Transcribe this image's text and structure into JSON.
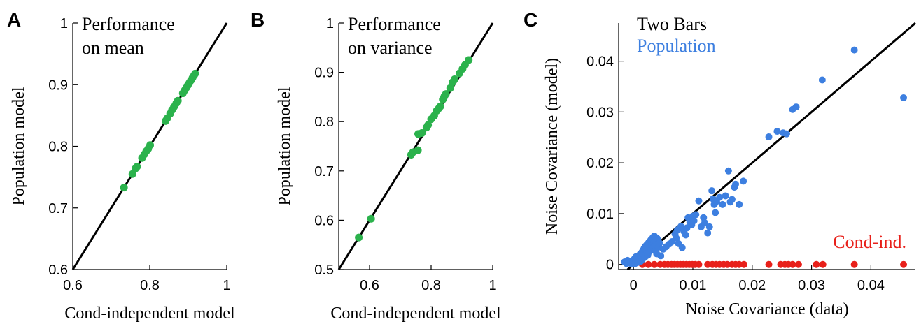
{
  "chart_data": [
    {
      "panel": "A",
      "type": "scatter",
      "annotation": [
        "Performance",
        "on mean"
      ],
      "xlabel": "Cond-independent model",
      "ylabel": "Population model",
      "xlim": [
        0.6,
        1
      ],
      "ylim": [
        0.6,
        1
      ],
      "xticks": [
        "0.6",
        "0.8",
        "1"
      ],
      "yticks": [
        "0.6",
        "0.7",
        "0.8",
        "0.9",
        "1"
      ],
      "identity_line": true,
      "colors": {
        "points": "#2bb24c"
      },
      "points": [
        [
          0.733,
          0.733
        ],
        [
          0.755,
          0.755
        ],
        [
          0.763,
          0.764
        ],
        [
          0.767,
          0.767
        ],
        [
          0.78,
          0.781
        ],
        [
          0.786,
          0.787
        ],
        [
          0.791,
          0.792
        ],
        [
          0.796,
          0.796
        ],
        [
          0.801,
          0.802
        ],
        [
          0.841,
          0.841
        ],
        [
          0.845,
          0.845
        ],
        [
          0.853,
          0.853
        ],
        [
          0.858,
          0.859
        ],
        [
          0.863,
          0.864
        ],
        [
          0.869,
          0.87
        ],
        [
          0.873,
          0.874
        ],
        [
          0.886,
          0.886
        ],
        [
          0.891,
          0.891
        ],
        [
          0.895,
          0.895
        ],
        [
          0.899,
          0.899
        ],
        [
          0.903,
          0.903
        ],
        [
          0.907,
          0.907
        ],
        [
          0.911,
          0.911
        ],
        [
          0.915,
          0.915
        ],
        [
          0.918,
          0.918
        ]
      ]
    },
    {
      "panel": "B",
      "type": "scatter",
      "annotation": [
        "Performance",
        "on variance"
      ],
      "xlabel": "Cond-independent model",
      "ylabel": "Population model",
      "xlim": [
        0.5,
        1
      ],
      "ylim": [
        0.5,
        1
      ],
      "xticks": [
        "0.6",
        "0.8",
        "1"
      ],
      "yticks": [
        "0.5",
        "0.6",
        "0.7",
        "0.8",
        "0.9",
        "1"
      ],
      "identity_line": true,
      "colors": {
        "points": "#2bb24c"
      },
      "points": [
        [
          0.565,
          0.565
        ],
        [
          0.605,
          0.603
        ],
        [
          0.735,
          0.733
        ],
        [
          0.741,
          0.738
        ],
        [
          0.757,
          0.742
        ],
        [
          0.758,
          0.775
        ],
        [
          0.77,
          0.777
        ],
        [
          0.785,
          0.788
        ],
        [
          0.79,
          0.793
        ],
        [
          0.8,
          0.805
        ],
        [
          0.81,
          0.812
        ],
        [
          0.818,
          0.822
        ],
        [
          0.825,
          0.827
        ],
        [
          0.83,
          0.831
        ],
        [
          0.838,
          0.845
        ],
        [
          0.843,
          0.851
        ],
        [
          0.848,
          0.856
        ],
        [
          0.862,
          0.868
        ],
        [
          0.87,
          0.88
        ],
        [
          0.876,
          0.886
        ],
        [
          0.892,
          0.898
        ],
        [
          0.902,
          0.907
        ],
        [
          0.91,
          0.915
        ],
        [
          0.922,
          0.925
        ]
      ]
    },
    {
      "panel": "C",
      "type": "scatter",
      "xlabel": "Noise Covariance (data)",
      "ylabel": "Noise Covariance (model)",
      "xlim": [
        -0.0025,
        0.0475
      ],
      "ylim": [
        -0.001,
        0.0475
      ],
      "xticks": [
        "0",
        "0.01",
        "0.02",
        "0.03",
        "0.04"
      ],
      "yticks": [
        "0",
        "0.01",
        "0.02",
        "0.03",
        "0.04"
      ],
      "identity_line": true,
      "legend": [
        {
          "name": "Two Bars",
          "color": "#000000"
        },
        {
          "name": "Population",
          "color": "#3d7fe0"
        }
      ],
      "annotation": {
        "text": "Cond-ind.",
        "color": "#e8201a"
      },
      "series": [
        {
          "name": "Population",
          "color": "#3d7fe0",
          "points": [
            [
              -0.0015,
              0.0005
            ],
            [
              -0.0012,
              0.0002
            ],
            [
              -0.001,
              0.0008
            ],
            [
              -0.0008,
              0.0003
            ],
            [
              -0.0005,
              0.0006
            ],
            [
              -0.0003,
              0.0001
            ],
            [
              0.0,
              0.0004
            ],
            [
              0.0,
              0.0009
            ],
            [
              0.0002,
              0.0012
            ],
            [
              0.0003,
              0.0002
            ],
            [
              0.0004,
              0.0015
            ],
            [
              0.0005,
              0.0007
            ],
            [
              0.0006,
              0.0011
            ],
            [
              0.0007,
              0.0004
            ],
            [
              0.0008,
              0.0017
            ],
            [
              0.0009,
              0.0009
            ],
            [
              0.001,
              0.0013
            ],
            [
              0.0011,
              0.002
            ],
            [
              0.0012,
              0.0006
            ],
            [
              0.0013,
              0.0016
            ],
            [
              0.0014,
              0.0024
            ],
            [
              0.0015,
              0.001
            ],
            [
              0.0016,
              0.0028
            ],
            [
              0.0017,
              0.0019
            ],
            [
              0.0018,
              0.0032
            ],
            [
              0.0019,
              0.0014
            ],
            [
              0.002,
              0.0036
            ],
            [
              0.0021,
              0.0023
            ],
            [
              0.0022,
              0.0027
            ],
            [
              0.0023,
              0.004
            ],
            [
              0.0024,
              0.0018
            ],
            [
              0.0025,
              0.0031
            ],
            [
              0.0026,
              0.0044
            ],
            [
              0.0027,
              0.0025
            ],
            [
              0.0028,
              0.0035
            ],
            [
              0.0029,
              0.0048
            ],
            [
              0.003,
              0.0029
            ],
            [
              0.0031,
              0.0039
            ],
            [
              0.0032,
              0.0052
            ],
            [
              0.0033,
              0.0033
            ],
            [
              0.0034,
              0.0043
            ],
            [
              0.0035,
              0.0056
            ],
            [
              0.0036,
              0.0037
            ],
            [
              0.0037,
              0.0047
            ],
            [
              0.0038,
              0.0026
            ],
            [
              0.0039,
              0.0021
            ],
            [
              0.004,
              0.0051
            ],
            [
              0.0042,
              0.0034
            ],
            [
              0.0044,
              0.0042
            ],
            [
              0.0046,
              0.0017
            ],
            [
              0.005,
              0.003
            ],
            [
              0.0055,
              0.0035
            ],
            [
              0.006,
              0.004
            ],
            [
              0.0065,
              0.0045
            ],
            [
              0.007,
              0.006
            ],
            [
              0.0072,
              0.0052
            ],
            [
              0.0074,
              0.0068
            ],
            [
              0.0076,
              0.0041
            ],
            [
              0.008,
              0.0075
            ],
            [
              0.0082,
              0.0033
            ],
            [
              0.0085,
              0.0065
            ],
            [
              0.0088,
              0.0058
            ],
            [
              0.009,
              0.0072
            ],
            [
              0.0092,
              0.0092
            ],
            [
              0.0095,
              0.0083
            ],
            [
              0.0098,
              0.0078
            ],
            [
              0.01,
              0.0095
            ],
            [
              0.0102,
              0.0086
            ],
            [
              0.0105,
              0.0098
            ],
            [
              0.011,
              0.0125
            ],
            [
              0.0114,
              0.0074
            ],
            [
              0.0118,
              0.0092
            ],
            [
              0.012,
              0.0082
            ],
            [
              0.0125,
              0.0062
            ],
            [
              0.0128,
              0.0074
            ],
            [
              0.0132,
              0.0145
            ],
            [
              0.0134,
              0.0129
            ],
            [
              0.0136,
              0.0118
            ],
            [
              0.0138,
              0.0102
            ],
            [
              0.014,
              0.0124
            ],
            [
              0.0145,
              0.0132
            ],
            [
              0.015,
              0.0118
            ],
            [
              0.0155,
              0.0135
            ],
            [
              0.016,
              0.0184
            ],
            [
              0.0163,
              0.0123
            ],
            [
              0.0166,
              0.0128
            ],
            [
              0.017,
              0.0152
            ],
            [
              0.0172,
              0.0158
            ],
            [
              0.0178,
              0.0118
            ],
            [
              0.0185,
              0.0164
            ],
            [
              0.0228,
              0.0251
            ],
            [
              0.0242,
              0.0262
            ],
            [
              0.0252,
              0.0259
            ],
            [
              0.0258,
              0.0257
            ],
            [
              0.0268,
              0.0305
            ],
            [
              0.0274,
              0.031
            ],
            [
              0.0318,
              0.0363
            ],
            [
              0.0372,
              0.0422
            ],
            [
              0.0455,
              0.0328
            ]
          ]
        },
        {
          "name": "Cond-ind.",
          "color": "#e8201a",
          "points": [
            [
              0.0015,
              0.0
            ],
            [
              0.0025,
              0.0
            ],
            [
              0.0035,
              0.0
            ],
            [
              0.0045,
              0.0
            ],
            [
              0.0052,
              0.0
            ],
            [
              0.0058,
              0.0
            ],
            [
              0.0064,
              0.0
            ],
            [
              0.0069,
              0.0
            ],
            [
              0.0074,
              0.0
            ],
            [
              0.0079,
              0.0
            ],
            [
              0.0084,
              0.0
            ],
            [
              0.0089,
              0.0
            ],
            [
              0.0094,
              0.0
            ],
            [
              0.0099,
              0.0
            ],
            [
              0.0104,
              0.0
            ],
            [
              0.011,
              0.0
            ],
            [
              0.0125,
              0.0
            ],
            [
              0.0133,
              0.0
            ],
            [
              0.0139,
              0.0
            ],
            [
              0.0145,
              0.0
            ],
            [
              0.0152,
              0.0
            ],
            [
              0.0158,
              0.0
            ],
            [
              0.0166,
              0.0
            ],
            [
              0.0172,
              0.0
            ],
            [
              0.0178,
              0.0
            ],
            [
              0.0186,
              0.0
            ],
            [
              0.0228,
              0.0
            ],
            [
              0.0248,
              0.0
            ],
            [
              0.0255,
              0.0
            ],
            [
              0.0261,
              0.0
            ],
            [
              0.0268,
              0.0
            ],
            [
              0.0278,
              0.0
            ],
            [
              0.0308,
              0.0
            ],
            [
              0.0319,
              0.0
            ],
            [
              0.0372,
              0.0
            ],
            [
              0.0455,
              0.0
            ]
          ]
        }
      ]
    }
  ]
}
